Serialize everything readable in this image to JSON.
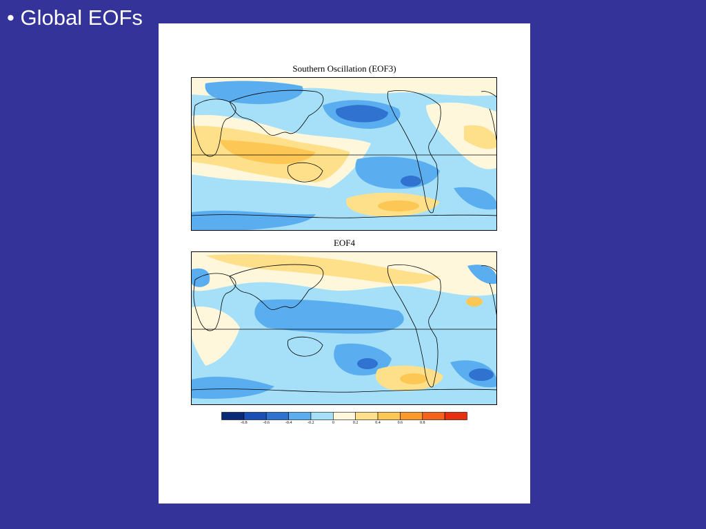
{
  "slide": {
    "title": "• Global EOFs"
  },
  "maps": [
    {
      "title": "Southern Oscillation (EOF3)"
    },
    {
      "title": "EOF4"
    }
  ],
  "colorbar": {
    "colors": [
      "#0a2a78",
      "#1a4fb5",
      "#2f72d0",
      "#5aaef0",
      "#a6e0f8",
      "#fef7dc",
      "#fee08a",
      "#fdc755",
      "#fb9a2b",
      "#f5621a",
      "#e8300e"
    ],
    "ticks": [
      "-0.8",
      "-0.6",
      "-0.4",
      "-0.2",
      "0",
      "0.2",
      "0.4",
      "0.6",
      "0.8"
    ]
  },
  "palette": {
    "light_blue": "#a6e0f8",
    "mid_blue": "#5aaef0",
    "dark_blue": "#2f72d0",
    "deep_blue": "#1a4fb5",
    "cream": "#fef7dc",
    "yellow": "#fee08a",
    "orange": "#fdc755"
  }
}
